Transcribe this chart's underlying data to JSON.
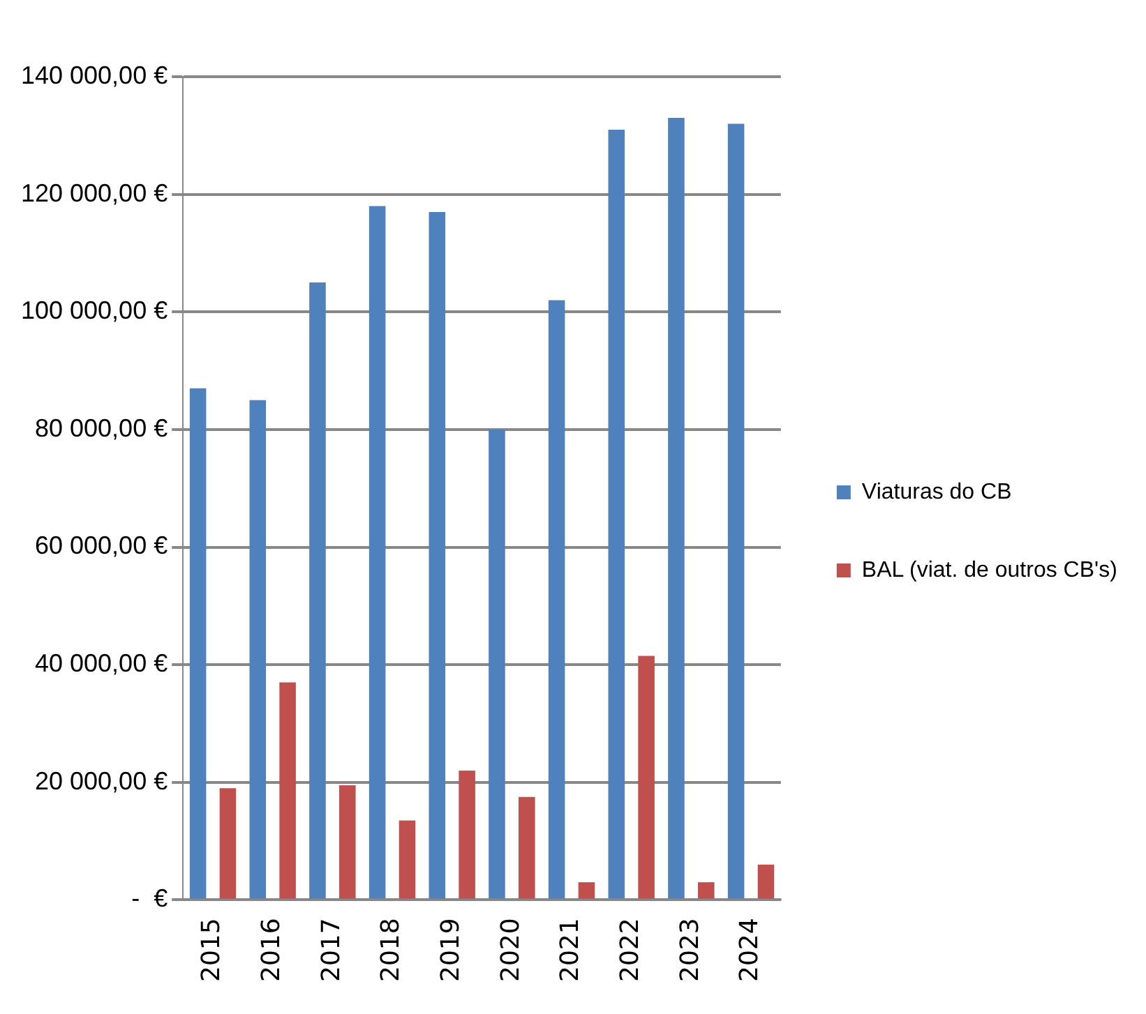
{
  "chart_data": {
    "type": "bar",
    "categories": [
      "2015",
      "2016",
      "2017",
      "2018",
      "2019",
      "2020",
      "2021",
      "2022",
      "2023",
      "2024"
    ],
    "series": [
      {
        "name": "Viaturas do CB",
        "color": "#4f81bd",
        "values": [
          87000,
          85000,
          105000,
          118000,
          117000,
          80000,
          102000,
          131000,
          133000,
          132000
        ]
      },
      {
        "name": "BAL (viat. de outros CB's)",
        "color": "#c0504d",
        "values": [
          19000,
          37000,
          19500,
          13500,
          22000,
          17500,
          3000,
          41500,
          3000,
          6000
        ]
      }
    ],
    "ylim": [
      0,
      140000
    ],
    "yticks": [
      {
        "value": 0,
        "label": "-  €"
      },
      {
        "value": 20000,
        "label": "20 000,00 €"
      },
      {
        "value": 40000,
        "label": "40 000,00 €"
      },
      {
        "value": 60000,
        "label": "60 000,00 €"
      },
      {
        "value": 80000,
        "label": "80 000,00 €"
      },
      {
        "value": 100000,
        "label": "100 000,00 €"
      },
      {
        "value": 120000,
        "label": "120 000,00 €"
      },
      {
        "value": 140000,
        "label": "140 000,00 €"
      }
    ],
    "grid": "y",
    "legend": "right"
  }
}
